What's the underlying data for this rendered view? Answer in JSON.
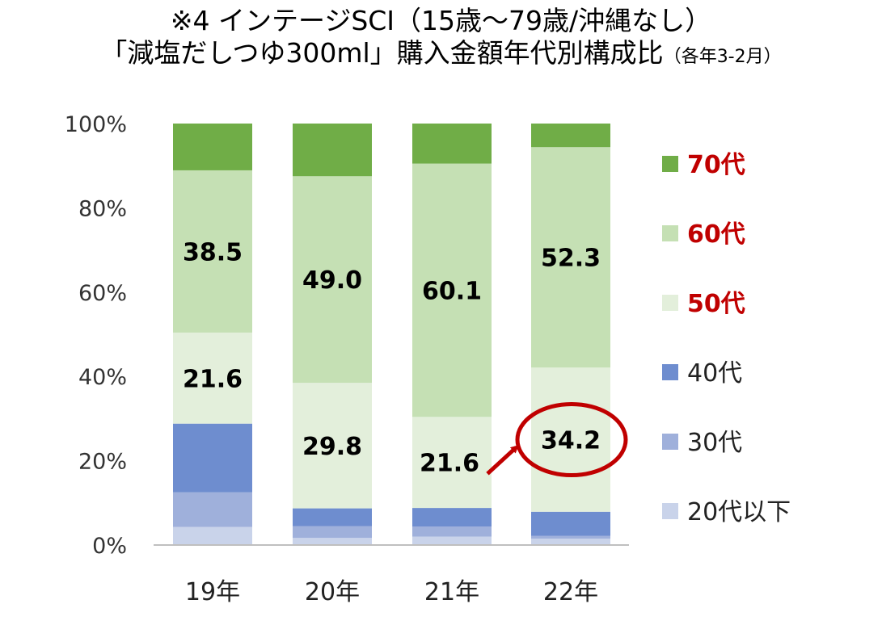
{
  "title_line1": "※4 インテージSCI（15歳～79歳/沖縄なし）",
  "title_line2_main": "「減塩だしつゆ300ml」購入金額年代別構成比",
  "title_line2_sub": "（各年3-2月）",
  "chart_data": {
    "type": "bar",
    "stacked": true,
    "categories": [
      "19年",
      "20年",
      "21年",
      "22年"
    ],
    "ylim": [
      0,
      100
    ],
    "yticks": [
      0,
      20,
      40,
      60,
      80,
      100
    ],
    "ytick_labels": [
      "0%",
      "20%",
      "40%",
      "60%",
      "80%",
      "100%"
    ],
    "series": [
      {
        "name": "20代以下",
        "color": "#c9d3ea",
        "values": [
          4.3,
          1.7,
          2.0,
          1.5
        ],
        "labels": [
          "",
          "",
          "",
          ""
        ]
      },
      {
        "name": "30代",
        "color": "#9fb0db",
        "values": [
          8.2,
          2.8,
          2.4,
          0.7
        ],
        "labels": [
          "",
          "",
          "",
          ""
        ]
      },
      {
        "name": "40代",
        "color": "#6e8dcf",
        "values": [
          16.3,
          4.2,
          4.4,
          5.7
        ],
        "labels": [
          "",
          "",
          "",
          ""
        ]
      },
      {
        "name": "50代",
        "color": "#e3efdb",
        "values": [
          21.6,
          29.8,
          21.6,
          34.2
        ],
        "labels": [
          "21.6",
          "29.8",
          "21.6",
          "34.2"
        ]
      },
      {
        "name": "60代",
        "color": "#c5e0b4",
        "values": [
          38.5,
          49.0,
          60.1,
          52.3
        ],
        "labels": [
          "38.5",
          "49.0",
          "60.1",
          "52.3"
        ]
      },
      {
        "name": "70代",
        "color": "#70ad47",
        "values": [
          11.1,
          12.5,
          9.5,
          5.6
        ],
        "labels": [
          "",
          "",
          "",
          ""
        ]
      }
    ],
    "highlighted_series": [
      "70代",
      "60代",
      "50代"
    ],
    "legend_position": "right",
    "annotation": {
      "type": "circle-arrow",
      "from_category": "21年",
      "to_category": "22年",
      "series": "50代",
      "color": "#c00000"
    }
  }
}
